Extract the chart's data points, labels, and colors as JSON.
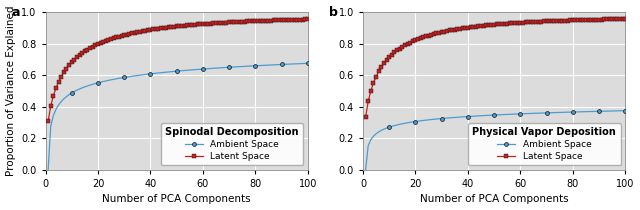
{
  "title_a": "Spinodal Decomposition",
  "title_b": "Physical Vapor Deposition",
  "xlabel": "Number of PCA Components",
  "ylabel": "Proportion of Variance Explained",
  "label_ambient": "Ambient Space",
  "label_latent": "Latent Space",
  "panel_a_label": "a",
  "panel_b_label": "b",
  "xlim": [
    0,
    100
  ],
  "ylim": [
    0.0,
    1.0
  ],
  "yticks": [
    0.0,
    0.2,
    0.4,
    0.6,
    0.8,
    1.0
  ],
  "xticks": [
    0,
    20,
    40,
    60,
    80,
    100
  ],
  "color_ambient": "#4B9CD3",
  "color_latent": "#C82020",
  "background_color": "#DCDCDC",
  "marker_ambient": "o",
  "marker_latent": "s",
  "n_points": 100,
  "ambient_a_scale": 0.675,
  "ambient_a_power": 0.47,
  "latent_a_scale": 0.975,
  "latent_a_alpha": 0.38,
  "ambient_b_scale": 0.375,
  "ambient_b_power": 0.47,
  "latent_b_scale": 0.97,
  "latent_b_alpha": 0.42
}
